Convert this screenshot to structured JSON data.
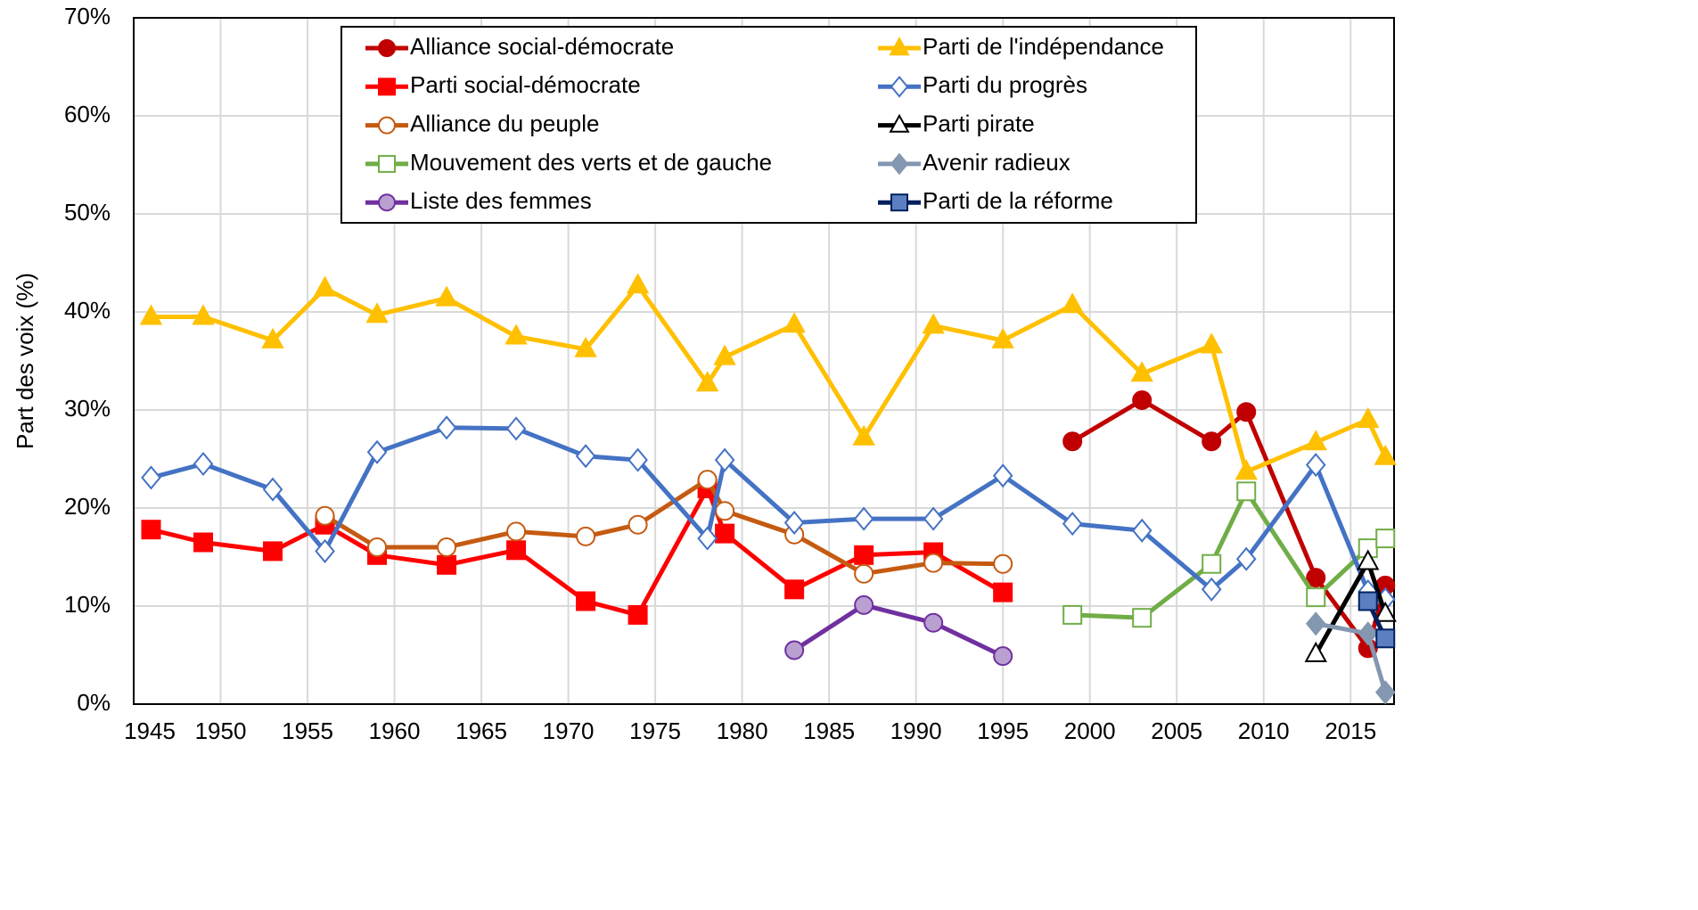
{
  "chart_data": {
    "type": "line",
    "y_label": "Part des voix (%)",
    "xlim": [
      1945,
      2017.5
    ],
    "xticks": [
      1945,
      1950,
      1955,
      1960,
      1965,
      1970,
      1975,
      1980,
      1985,
      1990,
      1995,
      2000,
      2005,
      2010,
      2015
    ],
    "ylim": [
      0,
      70
    ],
    "yticks": [
      {
        "value": 0,
        "label": "0%"
      },
      {
        "value": 10,
        "label": "10%"
      },
      {
        "value": 20,
        "label": "20%"
      },
      {
        "value": 30,
        "label": "30%"
      },
      {
        "value": 40,
        "label": "40%"
      },
      {
        "value": 50,
        "label": "50%"
      },
      {
        "value": 60,
        "label": "60%"
      },
      {
        "value": 70,
        "label": "70%"
      }
    ],
    "grid": true,
    "legend": "top",
    "series": [
      {
        "name": "Alliance social-démocrate",
        "color": "#c00000",
        "marker": "circle",
        "marker_fill": "#c00000",
        "x": [
          1999,
          2003,
          2007,
          2009,
          2013,
          2016,
          2017
        ],
        "values": [
          26.8,
          31.0,
          26.8,
          29.8,
          12.9,
          5.7,
          12.1
        ]
      },
      {
        "name": "Parti social-démocrate",
        "color": "#ff0000",
        "marker": "square",
        "marker_fill": "#ff0000",
        "x": [
          1946,
          1949,
          1953,
          1956,
          1959,
          1963,
          1967,
          1971,
          1974,
          1978,
          1979,
          1983,
          1987,
          1991,
          1995
        ],
        "values": [
          17.8,
          16.5,
          15.6,
          18.3,
          15.2,
          14.2,
          15.7,
          10.5,
          9.1,
          22.0,
          17.4,
          11.7,
          15.2,
          15.5,
          11.4
        ]
      },
      {
        "name": "Alliance du peuple",
        "color": "#c55a11",
        "marker": "circle",
        "marker_fill": "#ffffff",
        "x": [
          1956,
          1959,
          1963,
          1967,
          1971,
          1974,
          1978,
          1979,
          1983,
          1987,
          1991,
          1995
        ],
        "values": [
          19.2,
          16.0,
          16.0,
          17.6,
          17.1,
          18.3,
          22.9,
          19.7,
          17.3,
          13.3,
          14.4,
          14.3
        ]
      },
      {
        "name": "Mouvement des verts et de gauche",
        "color": "#70ad47",
        "marker": "square",
        "marker_fill": "#ffffff",
        "x": [
          1999,
          2003,
          2007,
          2009,
          2013,
          2016,
          2017
        ],
        "values": [
          9.1,
          8.8,
          14.3,
          21.7,
          10.9,
          15.9,
          16.9
        ]
      },
      {
        "name": "Liste des femmes",
        "color": "#7030a0",
        "marker": "circle",
        "marker_fill": "#b9a0d0",
        "x": [
          1983,
          1987,
          1991,
          1995
        ],
        "values": [
          5.5,
          10.1,
          8.3,
          4.9
        ]
      },
      {
        "name": "Parti de l'indépendance",
        "color": "#ffc000",
        "marker": "triangle",
        "marker_fill": "#ffc000",
        "x": [
          1946,
          1949,
          1953,
          1956,
          1959,
          1963,
          1967,
          1971,
          1974,
          1978,
          1979,
          1983,
          1987,
          1991,
          1995,
          1999,
          2003,
          2007,
          2009,
          2013,
          2016,
          2017
        ],
        "values": [
          39.5,
          39.5,
          37.1,
          42.4,
          39.7,
          41.4,
          37.5,
          36.2,
          42.7,
          32.7,
          35.4,
          38.7,
          27.2,
          38.6,
          37.1,
          40.7,
          33.7,
          36.6,
          23.7,
          26.7,
          29.0,
          25.2
        ]
      },
      {
        "name": "Parti du progrès",
        "color": "#4472c4",
        "marker": "diamond",
        "marker_fill": "#ffffff",
        "x": [
          1946,
          1949,
          1953,
          1956,
          1959,
          1963,
          1967,
          1971,
          1974,
          1978,
          1979,
          1983,
          1987,
          1991,
          1995,
          1999,
          2003,
          2007,
          2009,
          2013,
          2016,
          2017
        ],
        "values": [
          23.1,
          24.5,
          21.9,
          15.6,
          25.7,
          28.2,
          28.1,
          25.3,
          24.9,
          16.9,
          24.9,
          18.5,
          18.9,
          18.9,
          23.3,
          18.4,
          17.7,
          11.7,
          14.8,
          24.4,
          11.5,
          10.7
        ]
      },
      {
        "name": "Parti pirate",
        "color": "#000000",
        "marker": "triangle",
        "marker_fill": "#ffffff",
        "x": [
          2013,
          2016,
          2017
        ],
        "values": [
          5.1,
          14.5,
          9.2
        ]
      },
      {
        "name": "Avenir radieux",
        "color": "#8497b0",
        "marker": "diamond",
        "marker_fill": "#8497b0",
        "x": [
          2013,
          2016,
          2017
        ],
        "values": [
          8.2,
          7.2,
          1.2
        ]
      },
      {
        "name": "Parti de la réforme",
        "color": "#002060",
        "marker": "square",
        "marker_fill": "#5b7fc0",
        "x": [
          2016,
          2017
        ],
        "values": [
          10.5,
          6.7
        ]
      }
    ]
  }
}
